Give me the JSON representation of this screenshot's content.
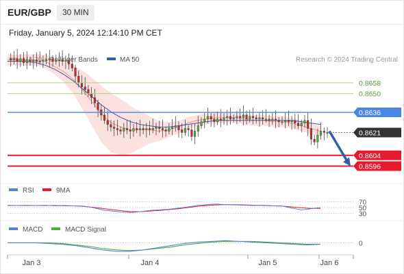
{
  "header": {
    "symbol": "EUR/GBP",
    "timeframe": "30 MIN",
    "datetime": "Friday, January 5, 2024 12:14:10 PM CET"
  },
  "legend_main": [
    {
      "label": "MA 20 + Bollinger Bands",
      "color": "#f4928a"
    },
    {
      "label": "MA 50",
      "color": "#3a5da8"
    }
  ],
  "credit": "Research © 2024 Trading Central",
  "legend_rsi": [
    {
      "label": "RSI",
      "color": "#5b7fd1"
    },
    {
      "label": "9MA",
      "color": "#e8192c"
    }
  ],
  "legend_macd": [
    {
      "label": "MACD",
      "color": "#5b7fd1"
    },
    {
      "label": "MACD Signal",
      "color": "#4caf30"
    }
  ],
  "colors": {
    "up": "#4caf30",
    "down": "#c62828",
    "resistance_light": "#a8d38d",
    "pivot": "#4a86e8",
    "support": "#e8192c",
    "current_price_tag": "#333333",
    "arrow": "#2e5fa8"
  },
  "chart_data": [
    {
      "type": "candlestick",
      "x_ticks": [
        "Jan 3",
        "Jan 4",
        "Jan 5",
        "Jan 6"
      ],
      "price_range": [
        0.8585,
        0.8685
      ],
      "grid": false,
      "levels": [
        {
          "value": 0.8658,
          "label": "0.8658",
          "kind": "resistance"
        },
        {
          "value": 0.865,
          "label": "0.8650",
          "kind": "resistance"
        },
        {
          "value": 0.8636,
          "label": "0.8636",
          "kind": "pivot"
        },
        {
          "value": 0.8621,
          "label": "0.8621",
          "kind": "last_price"
        },
        {
          "value": 0.8604,
          "label": "0.8604",
          "kind": "support"
        },
        {
          "value": 0.8596,
          "label": "0.8596",
          "kind": "support"
        }
      ],
      "forecast_arrow": {
        "from": 0.8622,
        "to": 0.8598
      },
      "close_path": [
        0.8676,
        0.8675,
        0.8676,
        0.8674,
        0.8676,
        0.8673,
        0.8675,
        0.8674,
        0.8675,
        0.8674,
        0.8674,
        0.8675,
        0.8675,
        0.8676,
        0.8674,
        0.8675,
        0.8675,
        0.8674,
        0.8675,
        0.8672,
        0.8669,
        0.8663,
        0.8658,
        0.8655,
        0.8653,
        0.865,
        0.8647,
        0.8643,
        0.8638,
        0.8634,
        0.863,
        0.8627,
        0.8625,
        0.8624,
        0.8623,
        0.8622,
        0.8624,
        0.8623,
        0.8622,
        0.8624,
        0.8623,
        0.8624,
        0.8623,
        0.8624,
        0.8623,
        0.8624,
        0.8625,
        0.8624,
        0.8623,
        0.8622,
        0.8624,
        0.8625,
        0.8626,
        0.8623,
        0.8621,
        0.8624,
        0.8623,
        0.8618,
        0.8622,
        0.8626,
        0.8629,
        0.8631,
        0.8633,
        0.8631,
        0.8629,
        0.8631,
        0.863,
        0.8632,
        0.8633,
        0.8631,
        0.8632,
        0.8633,
        0.8632,
        0.8634,
        0.8631,
        0.8633,
        0.8632,
        0.8631,
        0.8632,
        0.8631,
        0.8631,
        0.863,
        0.8631,
        0.863,
        0.8629,
        0.8629,
        0.863,
        0.8629,
        0.863,
        0.8628,
        0.8626,
        0.8628,
        0.863,
        0.8624,
        0.8616,
        0.8614,
        0.8619,
        0.8622,
        0.8621,
        0.8621
      ],
      "ma20": [
        0.8675,
        0.8675,
        0.8675,
        0.8675,
        0.8674,
        0.867,
        0.8666,
        0.866,
        0.8652,
        0.8643,
        0.8634,
        0.8628,
        0.8625,
        0.8623,
        0.8623,
        0.8623,
        0.8622,
        0.8623,
        0.8625,
        0.8628,
        0.863,
        0.8631,
        0.8632,
        0.8632,
        0.8632,
        0.8631,
        0.863,
        0.863,
        0.8629,
        0.8629,
        0.8628,
        0.8626,
        0.8624,
        0.8622
      ],
      "ma50": [
        0.8674,
        0.8674,
        0.8674,
        0.8673,
        0.8671,
        0.8668,
        0.8664,
        0.8659,
        0.8653,
        0.8647,
        0.8641,
        0.8636,
        0.8632,
        0.8629,
        0.8627,
        0.8626,
        0.8625,
        0.8625,
        0.8626,
        0.8627,
        0.8628,
        0.8629,
        0.863,
        0.863,
        0.863,
        0.863,
        0.863,
        0.863,
        0.863,
        0.863,
        0.863,
        0.8629,
        0.8628,
        0.8627
      ]
    },
    {
      "type": "line",
      "name": "RSI",
      "levels": [
        {
          "value": 70,
          "label": "70"
        },
        {
          "value": 50,
          "label": "50"
        },
        {
          "value": 30,
          "label": "30"
        }
      ],
      "ylim": [
        10,
        90
      ],
      "rsi": [
        58,
        57,
        58,
        57,
        58,
        56,
        57,
        56,
        55,
        50,
        42,
        38,
        35,
        33,
        36,
        40,
        42,
        44,
        48,
        52,
        57,
        60,
        62,
        60,
        59,
        58,
        57,
        58,
        56,
        55,
        48,
        42,
        46,
        50
      ],
      "ma9": [
        57,
        57,
        57,
        57,
        57,
        57,
        56,
        56,
        54,
        51,
        47,
        43,
        39,
        36,
        36,
        38,
        40,
        43,
        46,
        50,
        54,
        57,
        59,
        60,
        60,
        59,
        58,
        57,
        56,
        55,
        52,
        49,
        47,
        47
      ]
    },
    {
      "type": "line",
      "name": "MACD",
      "levels": [
        {
          "value": 0,
          "label": "0"
        }
      ],
      "ylim": [
        -0.0015,
        0.0012
      ],
      "macd": [
        0.0,
        0.0,
        0.0,
        -0.0001,
        -0.0002,
        -0.0004,
        -0.0007,
        -0.001,
        -0.0012,
        -0.0012,
        -0.001,
        -0.0007,
        -0.0004,
        -0.0001,
        0.0001,
        0.0002,
        0.0003,
        0.0002,
        0.0001,
        0.0,
        -0.0001,
        -0.0002,
        -0.0003,
        -0.0002
      ],
      "signal": [
        0.0,
        0.0,
        0.0,
        0.0,
        -0.0001,
        -0.0003,
        -0.0005,
        -0.0008,
        -0.001,
        -0.0011,
        -0.001,
        -0.0008,
        -0.0006,
        -0.0003,
        -0.0001,
        0.0001,
        0.0002,
        0.0002,
        0.0002,
        0.0001,
        0.0,
        -0.0001,
        -0.0002,
        -0.0002
      ]
    }
  ]
}
